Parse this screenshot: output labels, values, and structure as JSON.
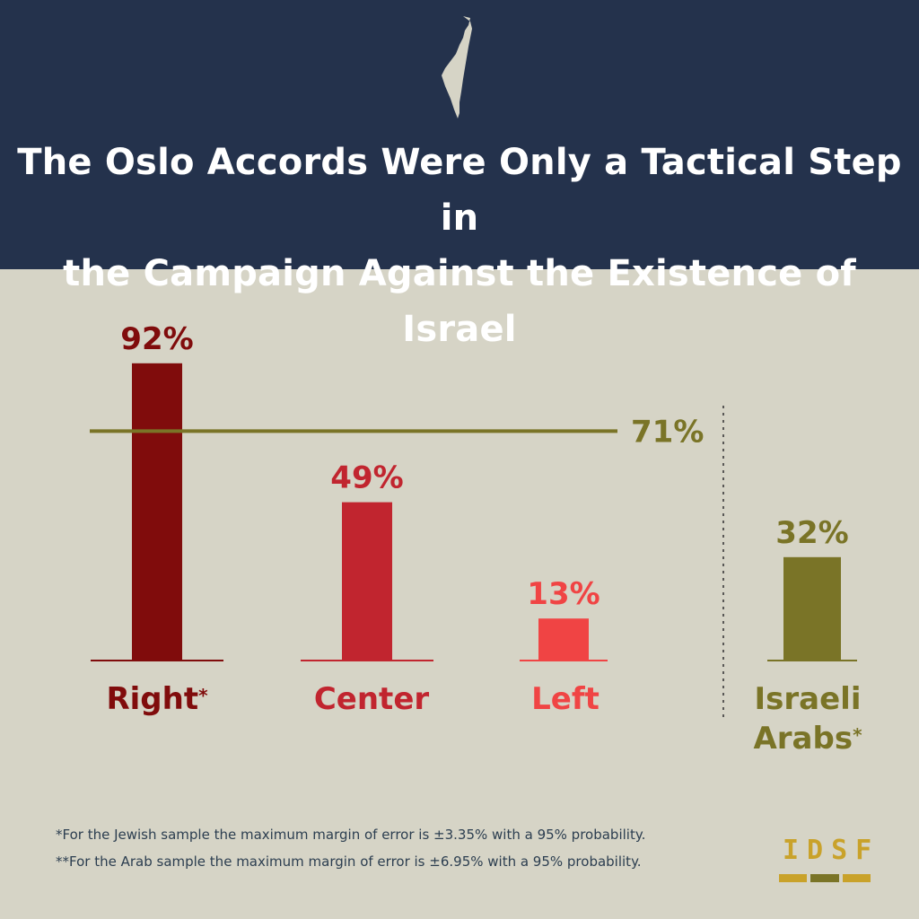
{
  "header": {
    "title_line1": "The Oslo Accords Were Only a Tactical Step in",
    "title_line2": "the Campaign Against the Existence of Israel",
    "map_icon": "israel-map-icon"
  },
  "chart_data": {
    "type": "bar",
    "categories": [
      "Right",
      "Center",
      "Left",
      "Israeli Arabs"
    ],
    "values": [
      92,
      49,
      13,
      32
    ],
    "value_labels": [
      "92%",
      "49%",
      "13%",
      "32%"
    ],
    "category_stars": [
      "*",
      "",
      "",
      "*"
    ],
    "colors": [
      "#800c0c",
      "#c1252f",
      "#f04444",
      "#7a7427"
    ],
    "reference_line": {
      "value": 71,
      "label": "71%",
      "color": "#7a7427"
    },
    "ylim": [
      0,
      100
    ],
    "title": "",
    "xlabel": "",
    "ylabel": ""
  },
  "footnotes": {
    "jewish": "*For the Jewish sample the maximum margin of error is ±3.35% with a 95% probability.",
    "arab": "**For the Arab sample the maximum margin of error is ±6.95% with a 95% probability."
  },
  "logo": {
    "text": "IDSF",
    "colors": [
      "#c9a22a",
      "#7a7427",
      "#c9a22a"
    ]
  }
}
